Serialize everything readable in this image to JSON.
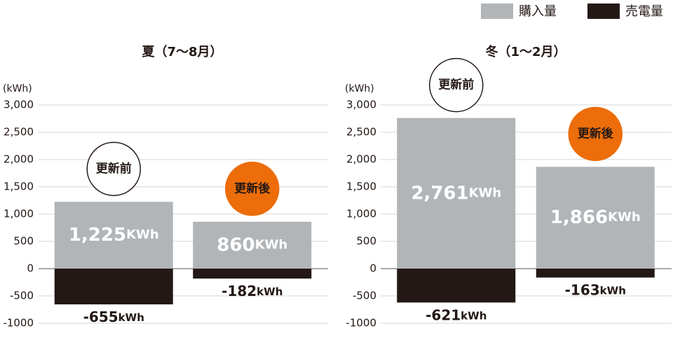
{
  "chart_data": [
    {
      "type": "bar",
      "title": "夏（7〜8月）",
      "y_label": "(kWh)",
      "categories": [
        "更新前",
        "更新後"
      ],
      "category_colors": [
        "#ffffff",
        "#ec6d0a"
      ],
      "series": [
        {
          "name": "購入量",
          "color": "#b1b5b8",
          "values": [
            1225,
            860
          ],
          "value_labels": [
            "1,225",
            "860"
          ],
          "value_unit": "KWh"
        },
        {
          "name": "売電量",
          "color": "#231815",
          "values": [
            -655,
            -182
          ],
          "value_unit": "kWh"
        }
      ],
      "ylim": [
        -1000,
        3000
      ],
      "yticks": [
        {
          "value": 3000,
          "label": "3,000"
        },
        {
          "value": 2500,
          "label": "2,500"
        },
        {
          "value": 2000,
          "label": "2,000"
        },
        {
          "value": 1500,
          "label": "1,500"
        },
        {
          "value": 1000,
          "label": "1,000"
        },
        500,
        0,
        -500,
        -1000
      ],
      "grid": true
    },
    {
      "type": "bar",
      "title": "冬（1〜2月）",
      "y_label": "(kWh)",
      "categories": [
        "更新前",
        "更新後"
      ],
      "category_colors": [
        "#ffffff",
        "#ec6d0a"
      ],
      "series": [
        {
          "name": "購入量",
          "color": "#b1b5b8",
          "values": [
            2761,
            1866
          ],
          "value_labels": [
            "2,761",
            "1,866"
          ],
          "value_unit": "KWh"
        },
        {
          "name": "売電量",
          "color": "#231815",
          "values": [
            -621,
            -163
          ],
          "value_unit": "kWh"
        }
      ],
      "ylim": [
        -1000,
        3000
      ],
      "yticks": [
        {
          "value": 3000,
          "label": "3,000"
        },
        {
          "value": 2500,
          "label": "2,500"
        },
        {
          "value": 2000,
          "label": "2,000"
        },
        {
          "value": 1500,
          "label": "1,500"
        },
        {
          "value": 1000,
          "label": "1,000"
        },
        500,
        0,
        -500,
        -1000
      ],
      "grid": true
    }
  ]
}
